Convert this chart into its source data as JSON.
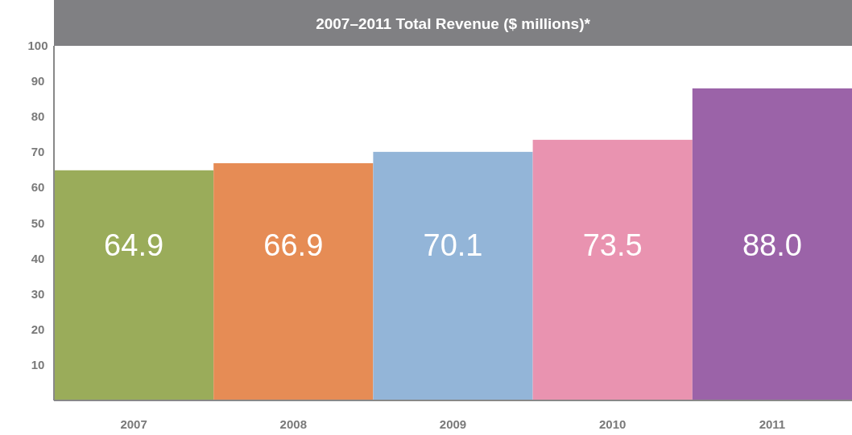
{
  "chart_data": {
    "type": "bar",
    "title": "2007–2011 Total Revenue ($ millions)*",
    "categories": [
      "2007",
      "2008",
      "2009",
      "2010",
      "2011"
    ],
    "values": [
      64.9,
      66.9,
      70.1,
      73.5,
      88.0
    ],
    "colors": [
      "#9aac5a",
      "#e68c55",
      "#93b5d8",
      "#e993b0",
      "#9b63a8"
    ],
    "ylim": [
      0,
      100
    ],
    "yticks": [
      10,
      20,
      30,
      40,
      50,
      60,
      70,
      80,
      90,
      100
    ],
    "value_labels": [
      "64.9",
      "66.9",
      "70.1",
      "73.5",
      "88.0"
    ],
    "grid": false
  }
}
